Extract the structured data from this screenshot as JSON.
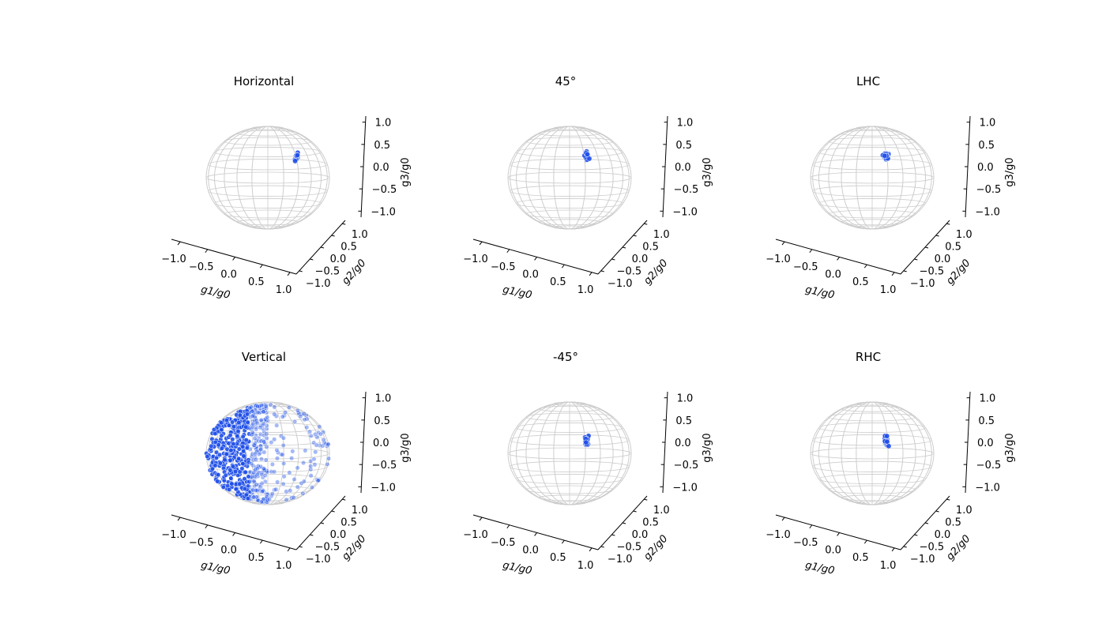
{
  "colors": {
    "points": "#1f4fe8",
    "points_edge": "#ffffff",
    "sphere": "#cccccc",
    "axis": "#000000"
  },
  "chart_data": [
    {
      "type": "scatter",
      "title": "Horizontal",
      "xlabel": "g1/g0",
      "ylabel": "g2/g0",
      "zlabel": "g3/g0",
      "xlim": [
        -1.2,
        1.2
      ],
      "ylim": [
        -1.2,
        1.2
      ],
      "zlim": [
        -1.2,
        1.2
      ],
      "xticks": [
        "−1.0",
        "−0.5",
        "0.0",
        "0.5",
        "1.0"
      ],
      "yticks": [
        "−1.0",
        "−0.5",
        "0.0",
        "0.5",
        "1.0"
      ],
      "zticks": [
        "−1.0",
        "−0.5",
        "0.0",
        "0.5",
        "1.0"
      ],
      "cluster": {
        "center": [
          1.0,
          0.0,
          0.4
        ],
        "spread": 0.03,
        "count": 20
      }
    },
    {
      "type": "scatter",
      "title": "45°",
      "xlabel": "g1/g0",
      "ylabel": "g2/g0",
      "zlabel": "g3/g0",
      "xlim": [
        -1.2,
        1.2
      ],
      "ylim": [
        -1.2,
        1.2
      ],
      "zlim": [
        -1.2,
        1.2
      ],
      "xticks": [
        "−1.0",
        "−0.5",
        "0.0",
        "0.5",
        "1.0"
      ],
      "yticks": [
        "−1.0",
        "−0.5",
        "0.0",
        "0.5",
        "1.0"
      ],
      "zticks": [
        "−1.0",
        "−0.5",
        "0.0",
        "0.5",
        "1.0"
      ],
      "cluster": {
        "center": [
          0.58,
          0.0,
          0.42
        ],
        "spread": 0.04,
        "count": 25
      }
    },
    {
      "type": "scatter",
      "title": "LHC",
      "xlabel": "g1/g0",
      "ylabel": "g2/g0",
      "zlabel": "g3/g0",
      "xlim": [
        -1.2,
        1.2
      ],
      "ylim": [
        -1.2,
        1.2
      ],
      "zlim": [
        -1.2,
        1.2
      ],
      "xticks": [
        "−1.0",
        "−0.5",
        "0.0",
        "0.5",
        "1.0"
      ],
      "yticks": [
        "−1.0",
        "−0.5",
        "0.0",
        "0.5",
        "1.0"
      ],
      "zticks": [
        "−1.0",
        "−0.5",
        "0.0",
        "0.5",
        "1.0"
      ],
      "cluster": {
        "center": [
          0.48,
          0.0,
          0.43
        ],
        "spread": 0.04,
        "count": 25
      }
    },
    {
      "type": "scatter",
      "title": "Vertical",
      "xlabel": "g1/g0",
      "ylabel": "g2/g0",
      "zlabel": "g3/g0",
      "xlim": [
        -1.2,
        1.2
      ],
      "ylim": [
        -1.2,
        1.2
      ],
      "zlim": [
        -1.2,
        1.2
      ],
      "xticks": [
        "−1.0",
        "−0.5",
        "0.0",
        "0.5",
        "1.0"
      ],
      "yticks": [
        "−1.0",
        "−0.5",
        "0.0",
        "0.5",
        "1.0"
      ],
      "zticks": [
        "−1.0",
        "−0.5",
        "0.0",
        "0.5",
        "1.0"
      ],
      "spread_cloud": {
        "count": 650,
        "concentration": "left hemisphere toward g1 = −1"
      }
    },
    {
      "type": "scatter",
      "title": "-45°",
      "xlabel": "g1/g0",
      "ylabel": "g2/g0",
      "zlabel": "g3/g0",
      "xlim": [
        -1.2,
        1.2
      ],
      "ylim": [
        -1.2,
        1.2
      ],
      "zlim": [
        -1.2,
        1.2
      ],
      "xticks": [
        "−1.0",
        "−0.5",
        "0.0",
        "0.5",
        "1.0"
      ],
      "yticks": [
        "−1.0",
        "−0.5",
        "0.0",
        "0.5",
        "1.0"
      ],
      "zticks": [
        "−1.0",
        "−0.5",
        "0.0",
        "0.5",
        "1.0"
      ],
      "cluster": {
        "center": [
          0.58,
          0.0,
          0.25
        ],
        "spread": 0.04,
        "count": 25
      }
    },
    {
      "type": "scatter",
      "title": "RHC",
      "xlabel": "g1/g0",
      "ylabel": "g2/g0",
      "zlabel": "g3/g0",
      "xlim": [
        -1.2,
        1.2
      ],
      "ylim": [
        -1.2,
        1.2
      ],
      "zlim": [
        -1.2,
        1.2
      ],
      "xticks": [
        "−1.0",
        "−0.5",
        "0.0",
        "0.5",
        "1.0"
      ],
      "yticks": [
        "−1.0",
        "−0.5",
        "0.0",
        "0.5",
        "1.0"
      ],
      "zticks": [
        "−1.0",
        "−0.5",
        "0.0",
        "0.5",
        "1.0"
      ],
      "cluster": {
        "center": [
          0.48,
          0.0,
          0.25
        ],
        "spread": 0.04,
        "count": 25
      }
    }
  ]
}
